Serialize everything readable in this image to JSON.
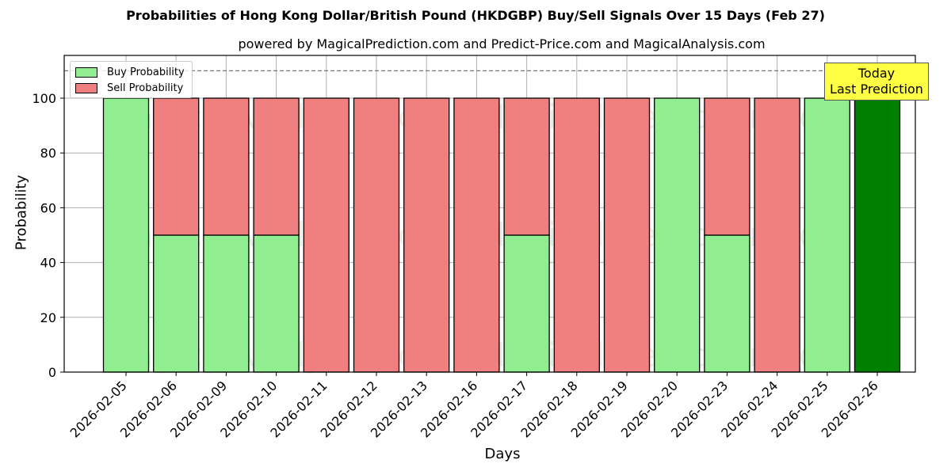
{
  "title": "Probabilities of Hong Kong Dollar/British Pound (HKDGBP) Buy/Sell Signals Over 15 Days (Feb 27)",
  "subtitle": "powered by MagicalPrediction.com and Predict-Price.com and MagicalAnalysis.com",
  "watermarks": [
    "MagicalAnalysis.com",
    "MagicalPrediction.com"
  ],
  "annotation": {
    "line1": "Today",
    "line2": "Last Prediction"
  },
  "legend": {
    "buy": "Buy Probability",
    "sell": "Sell Probability"
  },
  "colors": {
    "buy": "#90ee90",
    "sell": "#f08080",
    "today": "#008000",
    "annotation_bg": "#ffff44"
  },
  "chart_data": {
    "type": "bar",
    "stacked": true,
    "title": "Probabilities of Hong Kong Dollar/British Pound (HKDGBP) Buy/Sell Signals Over 15 Days (Feb 27)",
    "subtitle": "powered by MagicalPrediction.com and Predict-Price.com and MagicalAnalysis.com",
    "xlabel": "Days",
    "ylabel": "Probability",
    "ylim": [
      0,
      115
    ],
    "yticks": [
      0,
      20,
      40,
      60,
      80,
      100
    ],
    "grid": true,
    "legend_position": "upper left",
    "reference_line": {
      "y": 110,
      "style": "dashed"
    },
    "categories": [
      "2026-02-05",
      "2026-02-06",
      "2026-02-09",
      "2026-02-10",
      "2026-02-11",
      "2026-02-12",
      "2026-02-13",
      "2026-02-16",
      "2026-02-17",
      "2026-02-18",
      "2026-02-19",
      "2026-02-20",
      "2026-02-23",
      "2026-02-24",
      "2026-02-25",
      "2026-02-26"
    ],
    "series": [
      {
        "name": "Buy Probability",
        "values": [
          100,
          50,
          50,
          50,
          0,
          0,
          0,
          0,
          50,
          0,
          0,
          100,
          50,
          0,
          100,
          100
        ]
      },
      {
        "name": "Sell Probability",
        "values": [
          0,
          50,
          50,
          50,
          100,
          100,
          100,
          100,
          50,
          100,
          100,
          0,
          50,
          100,
          0,
          0
        ]
      }
    ],
    "highlight": {
      "category": "2026-02-26",
      "label": "Today Last Prediction"
    }
  }
}
